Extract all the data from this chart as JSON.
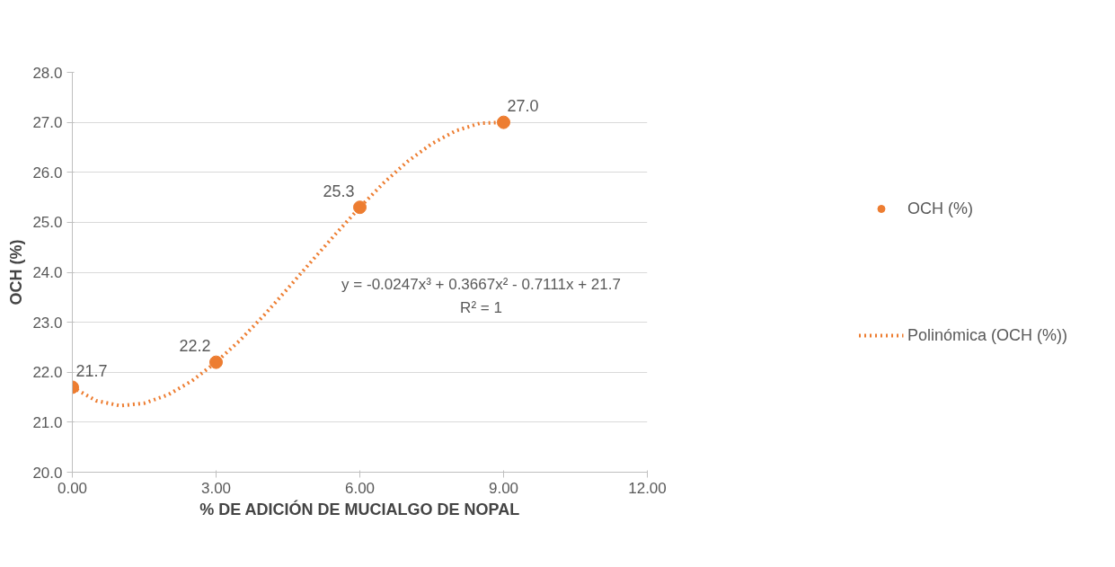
{
  "chart_data": {
    "type": "scatter",
    "xlabel": "% DE ADICIÓN DE MUCIALGO DE NOPAL",
    "ylabel": "OCH (%)",
    "x": [
      0,
      3,
      6,
      9
    ],
    "series": [
      {
        "name": "OCH (%)",
        "color": "#ed7d31",
        "values": [
          21.7,
          22.2,
          25.3,
          27.0
        ],
        "marker": "circle",
        "value_labels": [
          "21.7",
          "22.2",
          "25.3",
          "27.0"
        ]
      },
      {
        "name": "Polinómica (OCH (%))",
        "type": "line",
        "color": "#ed7d31",
        "line_style": "dotted",
        "x": [
          0,
          0.5,
          1,
          1.5,
          2,
          2.5,
          3,
          3.5,
          4,
          4.5,
          5,
          5.5,
          6,
          6.5,
          7,
          7.5,
          8,
          8.5,
          9
        ],
        "values": [
          21.7,
          21.43,
          21.33,
          21.38,
          21.55,
          21.83,
          22.2,
          22.64,
          23.14,
          23.68,
          24.23,
          24.77,
          25.3,
          25.79,
          26.22,
          26.57,
          26.83,
          26.98,
          27.0
        ]
      }
    ],
    "xlim": [
      0,
      12
    ],
    "xticks": [
      {
        "value": 0,
        "label": "0.00"
      },
      {
        "value": 3,
        "label": "3.00"
      },
      {
        "value": 6,
        "label": "6.00"
      },
      {
        "value": 9,
        "label": "9.00"
      },
      {
        "value": 12,
        "label": "12.00"
      }
    ],
    "ylim": [
      20,
      28
    ],
    "yticks": [
      {
        "value": 20,
        "label": "20.0"
      },
      {
        "value": 21,
        "label": "21.0"
      },
      {
        "value": 22,
        "label": "22.0"
      },
      {
        "value": 23,
        "label": "23.0"
      },
      {
        "value": 24,
        "label": "24.0"
      },
      {
        "value": 25,
        "label": "25.0"
      },
      {
        "value": 26,
        "label": "26.0"
      },
      {
        "value": 27,
        "label": "27.0"
      },
      {
        "value": 28,
        "label": "28.0"
      }
    ],
    "grid": "y",
    "legend": "right",
    "annotations": [
      "y = -0.0247x³ + 0.3667x² - 0.7111x + 21.7",
      "R² = 1"
    ]
  }
}
